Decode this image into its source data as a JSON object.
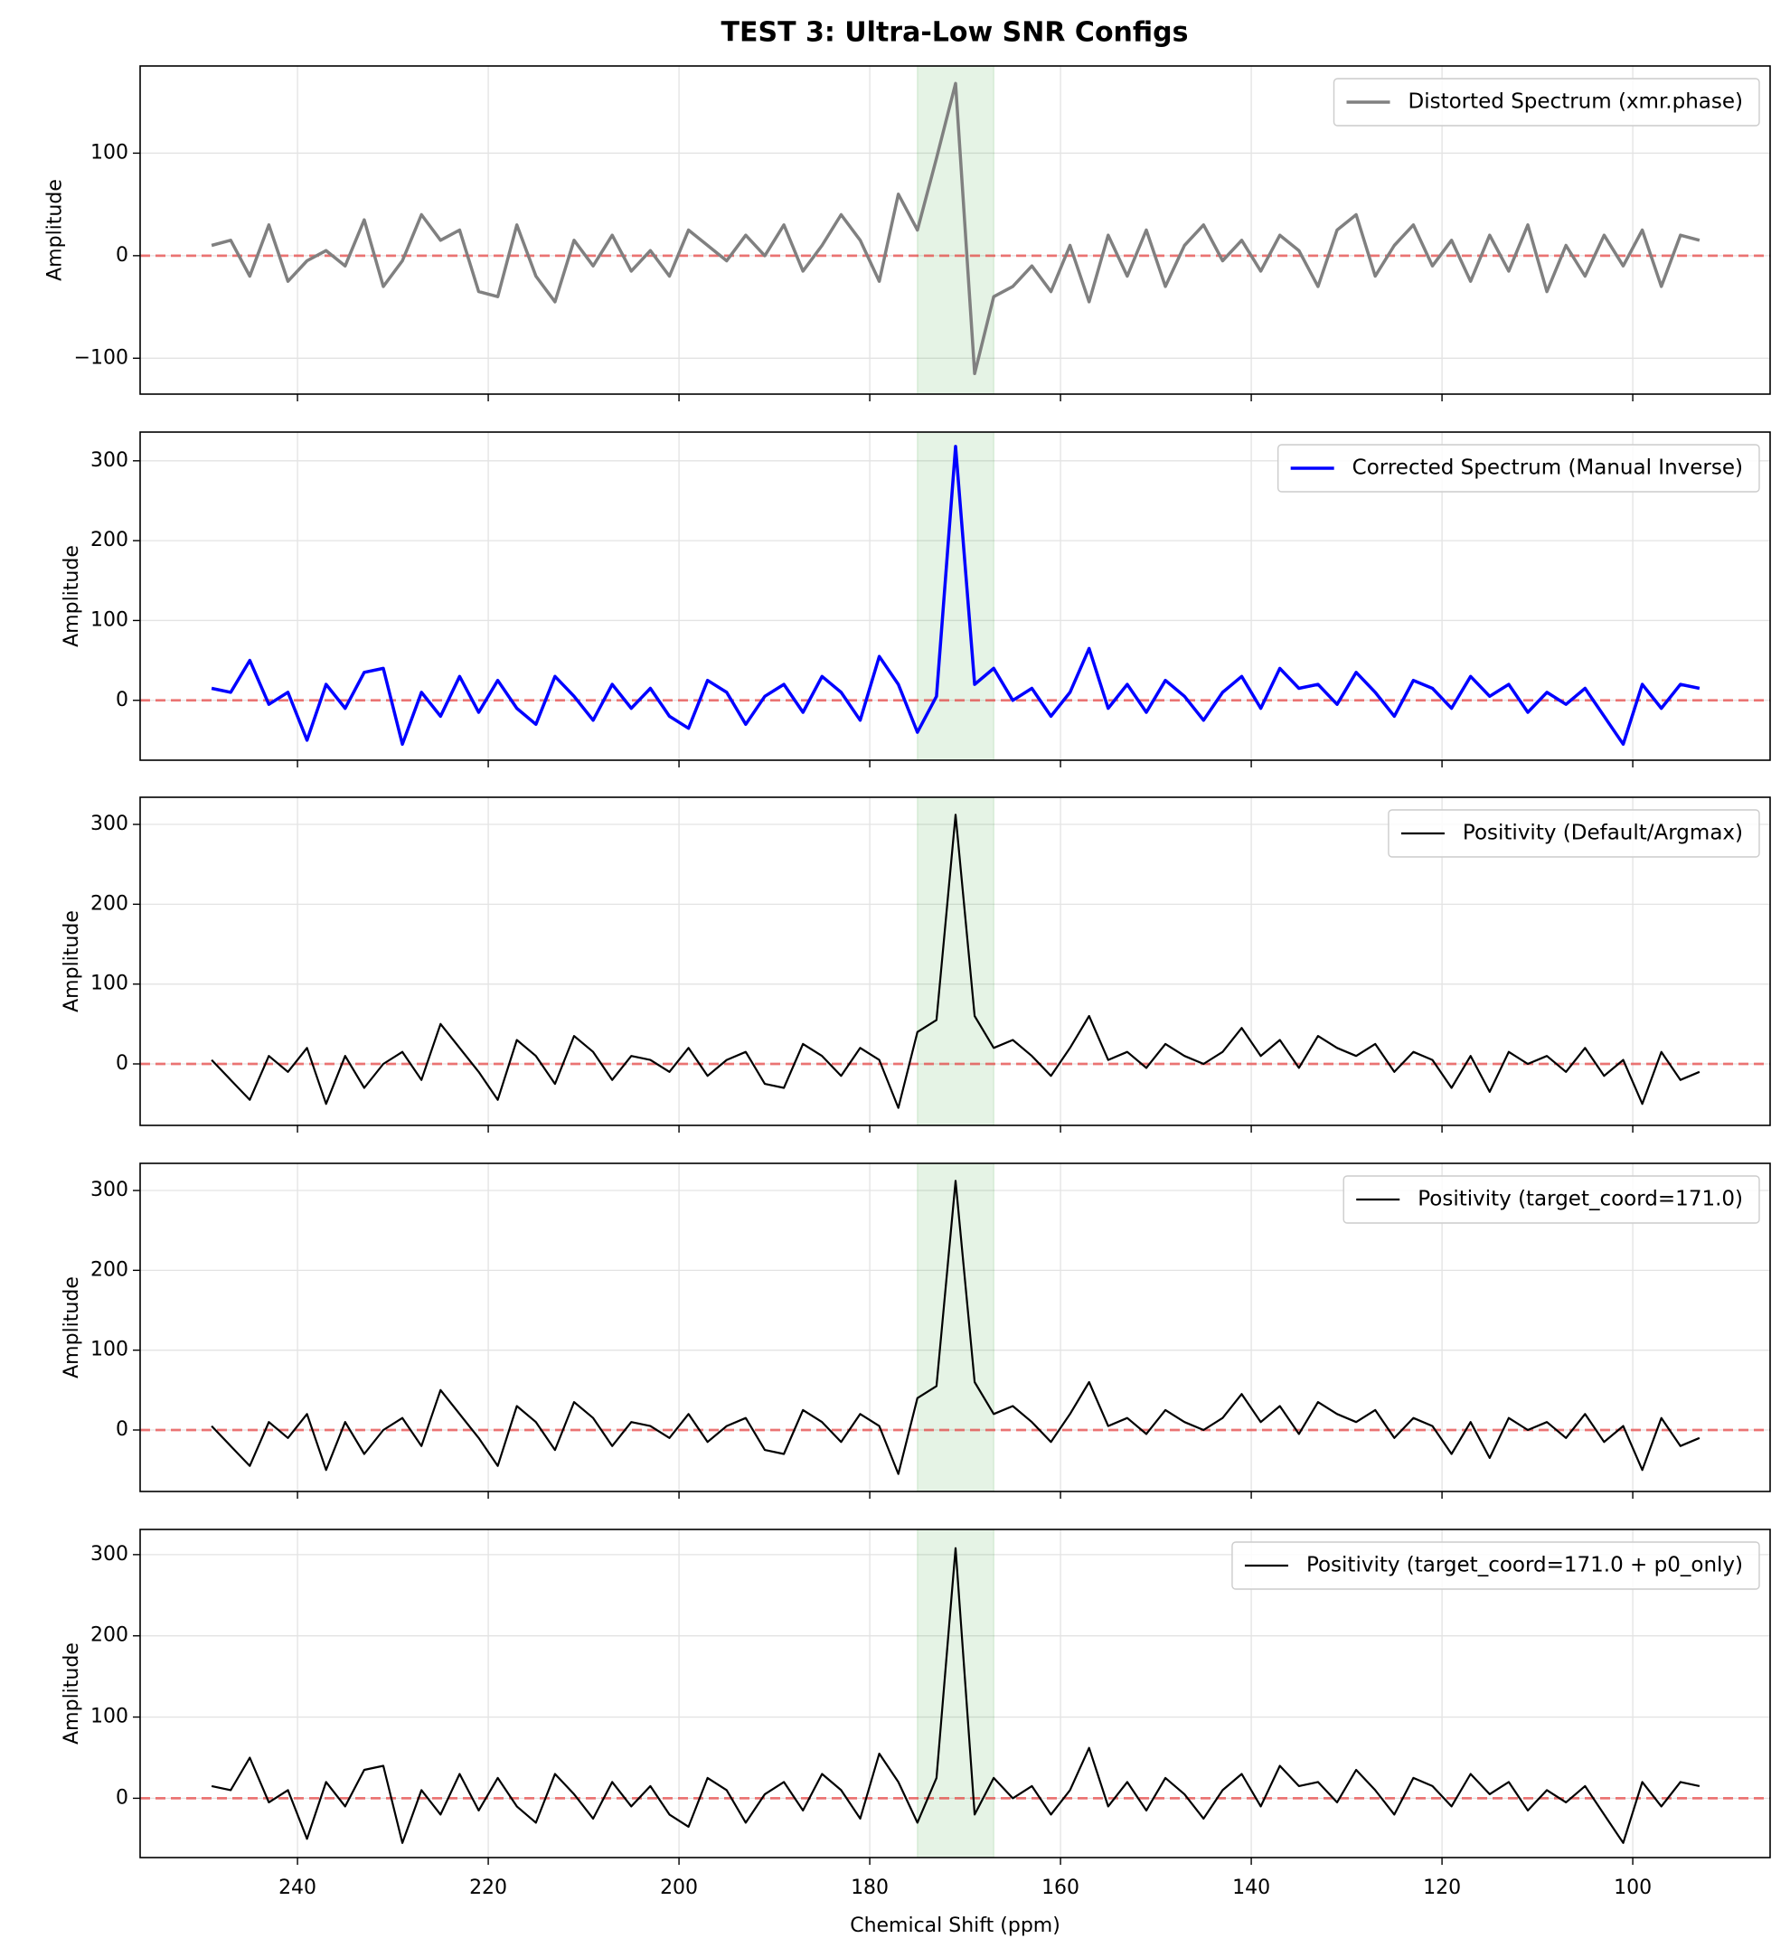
{
  "title": "TEST 3: Ultra-Low SNR Configs",
  "chart_data": [
    {
      "type": "line",
      "ylabel": "Amplitude",
      "xlim": [
        256.5,
        85.6
      ],
      "xticks": [
        240,
        220,
        200,
        180,
        160,
        140,
        120,
        100
      ],
      "ylim": [
        -135,
        185
      ],
      "yticks": [
        {
          "value": -100,
          "label": "−100"
        },
        0,
        100
      ],
      "grid": true,
      "legend": "upper right",
      "span": [
        175,
        167
      ],
      "hline": 0,
      "linewidth": 3.5,
      "x": [
        249,
        247,
        245,
        243,
        241,
        239,
        237,
        235,
        233,
        231,
        229,
        227,
        225,
        223,
        221,
        219,
        217,
        215,
        213,
        211,
        209,
        207,
        205,
        203,
        201,
        199,
        197,
        195,
        193,
        191,
        189,
        187,
        185,
        183,
        181,
        179,
        177,
        175,
        173,
        171,
        169,
        167,
        165,
        163,
        161,
        159,
        157,
        155,
        153,
        151,
        149,
        147,
        145,
        143,
        141,
        139,
        137,
        135,
        133,
        131,
        129,
        127,
        125,
        123,
        121,
        119,
        117,
        115,
        113,
        111,
        109,
        107,
        105,
        103,
        101,
        99,
        97,
        95,
        93
      ],
      "series": [
        {
          "name": "Distorted Spectrum (xmr.phase)",
          "color": "#808080",
          "values": [
            10,
            15,
            -20,
            30,
            -25,
            -5,
            5,
            -10,
            35,
            -30,
            -5,
            40,
            15,
            25,
            -35,
            -40,
            30,
            -20,
            -45,
            15,
            -10,
            20,
            -15,
            5,
            -20,
            25,
            10,
            -5,
            20,
            0,
            30,
            -15,
            10,
            40,
            15,
            -25,
            60,
            25,
            95,
            168,
            -115,
            -40,
            -30,
            -10,
            -35,
            10,
            -45,
            20,
            -20,
            25,
            -30,
            10,
            30,
            -5,
            15,
            -15,
            20,
            5,
            -30,
            25,
            40,
            -20,
            10,
            30,
            -10,
            15,
            -25,
            20,
            -15,
            30,
            -35,
            10,
            -20,
            20,
            -10,
            25,
            -30,
            20,
            15
          ]
        }
      ]
    },
    {
      "type": "line",
      "ylabel": "Amplitude",
      "xlim": [
        256.5,
        85.6
      ],
      "xticks": [
        240,
        220,
        200,
        180,
        160,
        140,
        120,
        100
      ],
      "ylim": [
        -75,
        336
      ],
      "yticks": [
        0,
        100,
        200,
        300
      ],
      "grid": true,
      "legend": "upper right",
      "span": [
        175,
        167
      ],
      "hline": 0,
      "linewidth": 3.5,
      "x": [
        249,
        247,
        245,
        243,
        241,
        239,
        237,
        235,
        233,
        231,
        229,
        227,
        225,
        223,
        221,
        219,
        217,
        215,
        213,
        211,
        209,
        207,
        205,
        203,
        201,
        199,
        197,
        195,
        193,
        191,
        189,
        187,
        185,
        183,
        181,
        179,
        177,
        175,
        173,
        171,
        169,
        167,
        165,
        163,
        161,
        159,
        157,
        155,
        153,
        151,
        149,
        147,
        145,
        143,
        141,
        139,
        137,
        135,
        133,
        131,
        129,
        127,
        125,
        123,
        121,
        119,
        117,
        115,
        113,
        111,
        109,
        107,
        105,
        103,
        101,
        99,
        97,
        95,
        93
      ],
      "series": [
        {
          "name": "Corrected Spectrum (Manual Inverse)",
          "color": "#0000ff",
          "values": [
            15,
            10,
            50,
            -5,
            10,
            -50,
            20,
            -10,
            35,
            40,
            -55,
            10,
            -20,
            30,
            -15,
            25,
            -10,
            -30,
            30,
            5,
            -25,
            20,
            -10,
            15,
            -20,
            -35,
            25,
            10,
            -30,
            5,
            20,
            -15,
            30,
            10,
            -25,
            55,
            20,
            -40,
            5,
            318,
            20,
            40,
            0,
            15,
            -20,
            10,
            65,
            -10,
            20,
            -15,
            25,
            5,
            -25,
            10,
            30,
            -10,
            40,
            15,
            20,
            -5,
            35,
            10,
            -20,
            25,
            15,
            -10,
            30,
            5,
            20,
            -15,
            10,
            -5,
            15,
            -20,
            -55,
            20,
            -10,
            20,
            15
          ]
        }
      ]
    },
    {
      "type": "line",
      "ylabel": "Amplitude",
      "xlim": [
        256.5,
        85.6
      ],
      "xticks": [
        240,
        220,
        200,
        180,
        160,
        140,
        120,
        100
      ],
      "ylim": [
        -77,
        334
      ],
      "yticks": [
        0,
        100,
        200,
        300
      ],
      "grid": true,
      "legend": "upper right",
      "span": [
        175,
        167
      ],
      "hline": 0,
      "linewidth": 2.2,
      "x": [
        249,
        247,
        245,
        243,
        241,
        239,
        237,
        235,
        233,
        231,
        229,
        227,
        225,
        223,
        221,
        219,
        217,
        215,
        213,
        211,
        209,
        207,
        205,
        203,
        201,
        199,
        197,
        195,
        193,
        191,
        189,
        187,
        185,
        183,
        181,
        179,
        177,
        175,
        173,
        171,
        169,
        167,
        165,
        163,
        161,
        159,
        157,
        155,
        153,
        151,
        149,
        147,
        145,
        143,
        141,
        139,
        137,
        135,
        133,
        131,
        129,
        127,
        125,
        123,
        121,
        119,
        117,
        115,
        113,
        111,
        109,
        107,
        105,
        103,
        101,
        99,
        97,
        95,
        93
      ],
      "series": [
        {
          "name": "Positivity (Default/Argmax)",
          "color": "#000000",
          "values": [
            5,
            -20,
            -45,
            10,
            -10,
            20,
            -50,
            10,
            -30,
            0,
            15,
            -20,
            50,
            20,
            -10,
            -45,
            30,
            10,
            -25,
            35,
            15,
            -20,
            10,
            5,
            -10,
            20,
            -15,
            5,
            15,
            -25,
            -30,
            25,
            10,
            -15,
            20,
            5,
            -55,
            40,
            55,
            312,
            60,
            20,
            30,
            10,
            -15,
            20,
            60,
            5,
            15,
            -5,
            25,
            10,
            0,
            15,
            45,
            10,
            30,
            -5,
            35,
            20,
            10,
            25,
            -10,
            15,
            5,
            -30,
            10,
            -35,
            15,
            0,
            10,
            -10,
            20,
            -15,
            5,
            -50,
            15,
            -20,
            -10
          ]
        }
      ]
    },
    {
      "type": "line",
      "ylabel": "Amplitude",
      "xlim": [
        256.5,
        85.6
      ],
      "xticks": [
        240,
        220,
        200,
        180,
        160,
        140,
        120,
        100
      ],
      "ylim": [
        -77,
        334
      ],
      "yticks": [
        0,
        100,
        200,
        300
      ],
      "grid": true,
      "legend": "upper right",
      "span": [
        175,
        167
      ],
      "hline": 0,
      "linewidth": 2.2,
      "x": [
        249,
        247,
        245,
        243,
        241,
        239,
        237,
        235,
        233,
        231,
        229,
        227,
        225,
        223,
        221,
        219,
        217,
        215,
        213,
        211,
        209,
        207,
        205,
        203,
        201,
        199,
        197,
        195,
        193,
        191,
        189,
        187,
        185,
        183,
        181,
        179,
        177,
        175,
        173,
        171,
        169,
        167,
        165,
        163,
        161,
        159,
        157,
        155,
        153,
        151,
        149,
        147,
        145,
        143,
        141,
        139,
        137,
        135,
        133,
        131,
        129,
        127,
        125,
        123,
        121,
        119,
        117,
        115,
        113,
        111,
        109,
        107,
        105,
        103,
        101,
        99,
        97,
        95,
        93
      ],
      "series": [
        {
          "name": "Positivity (target_coord=171.0)",
          "color": "#000000",
          "values": [
            5,
            -20,
            -45,
            10,
            -10,
            20,
            -50,
            10,
            -30,
            0,
            15,
            -20,
            50,
            20,
            -10,
            -45,
            30,
            10,
            -25,
            35,
            15,
            -20,
            10,
            5,
            -10,
            20,
            -15,
            5,
            15,
            -25,
            -30,
            25,
            10,
            -15,
            20,
            5,
            -55,
            40,
            55,
            312,
            60,
            20,
            30,
            10,
            -15,
            20,
            60,
            5,
            15,
            -5,
            25,
            10,
            0,
            15,
            45,
            10,
            30,
            -5,
            35,
            20,
            10,
            25,
            -10,
            15,
            5,
            -30,
            10,
            -35,
            15,
            0,
            10,
            -10,
            20,
            -15,
            5,
            -50,
            15,
            -20,
            -10
          ]
        }
      ]
    },
    {
      "type": "line",
      "ylabel": "Amplitude",
      "xlabel": "Chemical Shift (ppm)",
      "xlim": [
        256.5,
        85.6
      ],
      "xticks": [
        240,
        220,
        200,
        180,
        160,
        140,
        120,
        100
      ],
      "ylim": [
        -73,
        331
      ],
      "yticks": [
        0,
        100,
        200,
        300
      ],
      "grid": true,
      "legend": "upper right",
      "span": [
        175,
        167
      ],
      "hline": 0,
      "linewidth": 2.2,
      "x": [
        249,
        247,
        245,
        243,
        241,
        239,
        237,
        235,
        233,
        231,
        229,
        227,
        225,
        223,
        221,
        219,
        217,
        215,
        213,
        211,
        209,
        207,
        205,
        203,
        201,
        199,
        197,
        195,
        193,
        191,
        189,
        187,
        185,
        183,
        181,
        179,
        177,
        175,
        173,
        171,
        169,
        167,
        165,
        163,
        161,
        159,
        157,
        155,
        153,
        151,
        149,
        147,
        145,
        143,
        141,
        139,
        137,
        135,
        133,
        131,
        129,
        127,
        125,
        123,
        121,
        119,
        117,
        115,
        113,
        111,
        109,
        107,
        105,
        103,
        101,
        99,
        97,
        95,
        93
      ],
      "series": [
        {
          "name": "Positivity (target_coord=171.0 + p0_only)",
          "color": "#000000",
          "values": [
            15,
            10,
            50,
            -5,
            10,
            -50,
            20,
            -10,
            35,
            40,
            -55,
            10,
            -20,
            30,
            -15,
            25,
            -10,
            -30,
            30,
            5,
            -25,
            20,
            -10,
            15,
            -20,
            -35,
            25,
            10,
            -30,
            5,
            20,
            -15,
            30,
            10,
            -25,
            55,
            20,
            -30,
            25,
            308,
            -20,
            25,
            0,
            15,
            -20,
            10,
            62,
            -10,
            20,
            -15,
            25,
            5,
            -25,
            10,
            30,
            -10,
            40,
            15,
            20,
            -5,
            35,
            10,
            -20,
            25,
            15,
            -10,
            30,
            5,
            20,
            -15,
            10,
            -5,
            15,
            -20,
            -55,
            20,
            -10,
            20,
            15
          ]
        }
      ]
    }
  ]
}
